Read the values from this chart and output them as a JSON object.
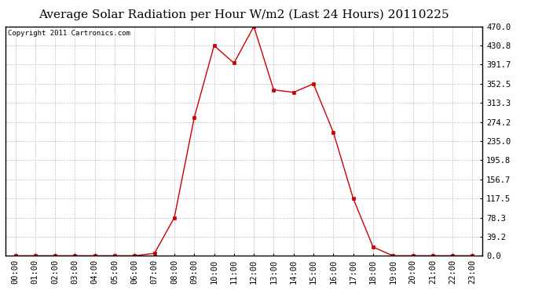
{
  "title": "Average Solar Radiation per Hour W/m2 (Last 24 Hours) 20110225",
  "copyright": "Copyright 2011 Cartronics.com",
  "x_labels": [
    "00:00",
    "01:00",
    "02:00",
    "03:00",
    "04:00",
    "05:00",
    "06:00",
    "07:00",
    "08:00",
    "09:00",
    "10:00",
    "11:00",
    "12:00",
    "13:00",
    "14:00",
    "15:00",
    "16:00",
    "17:00",
    "18:00",
    "19:00",
    "20:00",
    "21:00",
    "22:00",
    "23:00"
  ],
  "y_values": [
    0.0,
    0.0,
    0.0,
    0.0,
    0.0,
    0.0,
    0.0,
    5.0,
    78.3,
    283.0,
    430.8,
    395.0,
    470.0,
    340.0,
    335.0,
    352.5,
    253.0,
    117.5,
    18.0,
    0.0,
    0.0,
    0.0,
    0.0,
    0.0
  ],
  "y_ticks": [
    0.0,
    39.2,
    78.3,
    117.5,
    156.7,
    195.8,
    235.0,
    274.2,
    313.3,
    352.5,
    391.7,
    430.8,
    470.0
  ],
  "y_max": 470.0,
  "y_min": 0.0,
  "line_color": "#cc0000",
  "marker": "s",
  "marker_size": 2.5,
  "background_color": "#ffffff",
  "grid_color": "#c0c0c0",
  "title_fontsize": 11,
  "copyright_fontsize": 6.5,
  "tick_fontsize": 7.5
}
